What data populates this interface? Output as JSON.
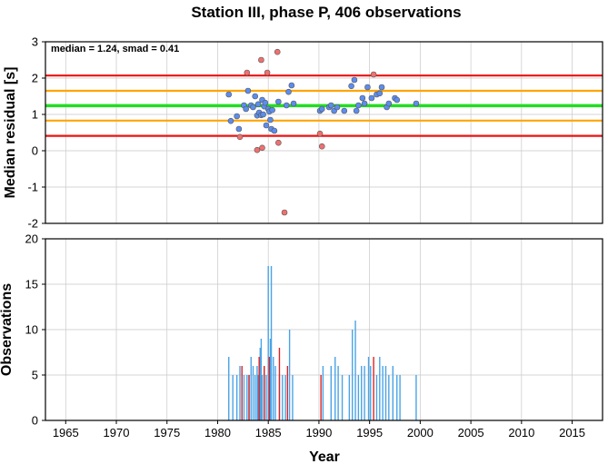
{
  "chart_data": [
    {
      "type": "scatter",
      "title": "Station III, phase P, 406 observations",
      "ylabel": "Median residual [s]",
      "annotation": "median = 1.24, smad = 0.41",
      "xlim": [
        1963,
        2018
      ],
      "ylim": [
        -2,
        3
      ],
      "yticks": [
        "-2",
        "-1",
        "0",
        "1",
        "2",
        "3"
      ],
      "grid": true,
      "reference_lines": [
        {
          "y": 2.07,
          "color": "#ee1111"
        },
        {
          "y": 1.65,
          "color": "#ffa500"
        },
        {
          "y": 1.24,
          "color": "#22dd22"
        },
        {
          "y": 0.83,
          "color": "#ffa500"
        },
        {
          "y": 0.41,
          "color": "#ee1111"
        }
      ],
      "series": [
        {
          "color": "#5b8def",
          "points": [
            [
              1981.1,
              1.55
            ],
            [
              1981.3,
              0.82
            ],
            [
              1981.9,
              0.95
            ],
            [
              1982.1,
              0.6
            ],
            [
              1982.6,
              1.25
            ],
            [
              1982.8,
              1.15
            ],
            [
              1983.0,
              1.65
            ],
            [
              1983.3,
              1.25
            ],
            [
              1983.5,
              1.2
            ],
            [
              1983.7,
              1.5
            ],
            [
              1983.9,
              0.97
            ],
            [
              1984.0,
              1.28
            ],
            [
              1984.1,
              1.05
            ],
            [
              1984.3,
              0.98
            ],
            [
              1984.4,
              1.4
            ],
            [
              1984.5,
              1.0
            ],
            [
              1984.6,
              1.22
            ],
            [
              1984.7,
              1.32
            ],
            [
              1984.8,
              0.7
            ],
            [
              1985.0,
              1.15
            ],
            [
              1985.1,
              1.08
            ],
            [
              1985.2,
              0.85
            ],
            [
              1985.3,
              0.6
            ],
            [
              1985.4,
              1.12
            ],
            [
              1985.6,
              0.55
            ],
            [
              1986.0,
              1.35
            ],
            [
              1986.8,
              1.25
            ],
            [
              1987.0,
              1.62
            ],
            [
              1987.3,
              1.8
            ],
            [
              1987.5,
              1.3
            ],
            [
              1990.1,
              1.1
            ],
            [
              1990.3,
              1.15
            ],
            [
              1991.0,
              1.2
            ],
            [
              1991.2,
              1.25
            ],
            [
              1991.5,
              1.1
            ],
            [
              1991.8,
              1.2
            ],
            [
              1992.5,
              1.1
            ],
            [
              1993.2,
              1.78
            ],
            [
              1993.5,
              1.95
            ],
            [
              1993.7,
              1.1
            ],
            [
              1993.9,
              1.25
            ],
            [
              1994.3,
              1.45
            ],
            [
              1994.5,
              1.3
            ],
            [
              1994.8,
              1.75
            ],
            [
              1995.2,
              1.45
            ],
            [
              1995.7,
              1.55
            ],
            [
              1996.0,
              1.58
            ],
            [
              1996.2,
              1.75
            ],
            [
              1996.7,
              1.2
            ],
            [
              1996.9,
              1.3
            ],
            [
              1997.5,
              1.45
            ],
            [
              1997.7,
              1.4
            ],
            [
              1999.6,
              1.3
            ]
          ]
        },
        {
          "color": "#f07070",
          "points": [
            [
              1982.2,
              0.38
            ],
            [
              1982.9,
              2.15
            ],
            [
              1983.9,
              0.02
            ],
            [
              1984.3,
              2.5
            ],
            [
              1984.4,
              0.08
            ],
            [
              1984.9,
              2.15
            ],
            [
              1985.9,
              2.72
            ],
            [
              1986.0,
              0.22
            ],
            [
              1986.6,
              -1.7
            ],
            [
              1990.1,
              0.47
            ],
            [
              1990.3,
              0.12
            ],
            [
              1995.4,
              2.1
            ]
          ]
        }
      ]
    },
    {
      "type": "bar",
      "xlabel": "Year",
      "ylabel": "Observations",
      "xlim": [
        1963,
        2018
      ],
      "ylim": [
        0,
        20
      ],
      "xticks": [
        "1965",
        "1970",
        "1975",
        "1980",
        "1985",
        "1990",
        "1995",
        "2000",
        "2005",
        "2010",
        "2015"
      ],
      "yticks": [
        "0",
        "5",
        "10",
        "15",
        "20"
      ],
      "grid": true,
      "series": [
        {
          "color": "#4aa3e6",
          "bars": [
            [
              1981.1,
              7
            ],
            [
              1981.5,
              5
            ],
            [
              1981.9,
              5
            ],
            [
              1982.2,
              6
            ],
            [
              1982.6,
              5
            ],
            [
              1982.9,
              5
            ],
            [
              1983.1,
              5
            ],
            [
              1983.3,
              7
            ],
            [
              1983.5,
              6
            ],
            [
              1983.7,
              5
            ],
            [
              1983.9,
              6
            ],
            [
              1984.0,
              5
            ],
            [
              1984.2,
              8
            ],
            [
              1984.3,
              9
            ],
            [
              1984.4,
              5
            ],
            [
              1984.6,
              6
            ],
            [
              1984.8,
              5
            ],
            [
              1985.0,
              17
            ],
            [
              1985.2,
              9
            ],
            [
              1985.3,
              17
            ],
            [
              1985.5,
              7
            ],
            [
              1985.7,
              6
            ],
            [
              1986.1,
              5
            ],
            [
              1986.4,
              5
            ],
            [
              1986.7,
              5
            ],
            [
              1987.1,
              10
            ],
            [
              1987.4,
              5
            ],
            [
              1990.4,
              6
            ],
            [
              1991.2,
              6
            ],
            [
              1991.6,
              7
            ],
            [
              1991.9,
              6
            ],
            [
              1992.3,
              5
            ],
            [
              1993.0,
              5
            ],
            [
              1993.3,
              10
            ],
            [
              1993.6,
              11
            ],
            [
              1993.9,
              5
            ],
            [
              1994.2,
              6
            ],
            [
              1994.5,
              6
            ],
            [
              1994.9,
              7
            ],
            [
              1995.1,
              6
            ],
            [
              1995.7,
              5
            ],
            [
              1996.0,
              7
            ],
            [
              1996.3,
              6
            ],
            [
              1996.6,
              6
            ],
            [
              1996.9,
              5
            ],
            [
              1997.3,
              6
            ],
            [
              1997.7,
              5
            ],
            [
              1998.0,
              5
            ],
            [
              1999.6,
              5
            ]
          ]
        },
        {
          "color": "#dd2222",
          "bars": [
            [
              1982.4,
              6
            ],
            [
              1983.1,
              5
            ],
            [
              1984.1,
              7
            ],
            [
              1984.6,
              6
            ],
            [
              1985.1,
              7
            ],
            [
              1986.1,
              8
            ],
            [
              1986.9,
              6
            ],
            [
              1990.2,
              5
            ],
            [
              1995.4,
              7
            ]
          ]
        }
      ]
    }
  ]
}
